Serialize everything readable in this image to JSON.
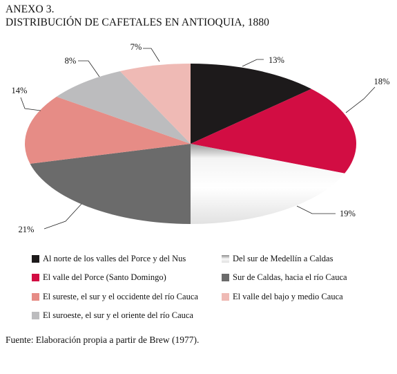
{
  "heading": {
    "line1": "ANEXO 3.",
    "line2": "DISTRIBUCIÓN DE CAFETALES EN ANTIOQUIA, 1880"
  },
  "chart_data": {
    "type": "pie",
    "style": "3d-ellipse",
    "title": "DISTRIBUCIÓN DE CAFETALES EN ANTIOQUIA, 1880",
    "unit": "%",
    "legend_position": "bottom",
    "slices": [
      {
        "name": "Al norte de los valles del Porce y del Nus",
        "value": 13,
        "label": "13%",
        "color": "#1d1a1b"
      },
      {
        "name": "El valle del Porce (Santo Domingo)",
        "value": 18,
        "label": "18%",
        "color": "#d20d43"
      },
      {
        "name": "Del sur de Medellín a Caldas",
        "value": 19,
        "label": "19%",
        "color": "#d8d8d8"
      },
      {
        "name": "Sur de Caldas, hacia el río Cauca",
        "value": 21,
        "label": "21%",
        "color": "#6b6b6b"
      },
      {
        "name": "El sureste, el sur y el occidente del río Cauca",
        "value": 14,
        "label": "14%",
        "color": "#e68c86"
      },
      {
        "name": "El suroeste, el sur y el oriente del río Cauca",
        "value": 8,
        "label": "8%",
        "color": "#bcbcbe"
      },
      {
        "name": "El valle del bajo y medio Cauca",
        "value": 7,
        "label": "7%",
        "color": "#efbab5"
      }
    ]
  },
  "source": "Fuente: Elaboración propia a partir de Brew (1977)."
}
